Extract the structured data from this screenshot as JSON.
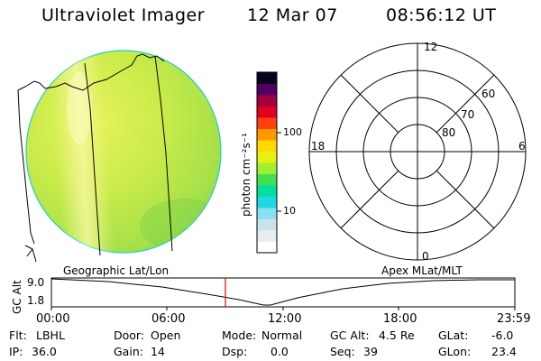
{
  "header": {
    "instrument": "Ultraviolet Imager",
    "date": "12 Mar 07",
    "time": "08:56:12 UT"
  },
  "colorbar": {
    "unit_label": "photon cm⁻²s⁻¹",
    "ticks": [
      "100",
      "10"
    ],
    "colors": [
      "#ffffff",
      "#e6eef0",
      "#c8e4ea",
      "#88e0f0",
      "#22d8e0",
      "#00e0a0",
      "#40e050",
      "#a0f030",
      "#e8f010",
      "#ffd800",
      "#ff9800",
      "#ff4010",
      "#e00020",
      "#a00040",
      "#500060",
      "#0a0020"
    ]
  },
  "polar": {
    "labels": {
      "top": "12",
      "left": "18",
      "right": "6",
      "bottom": "0",
      "lat60": "60",
      "lat70": "70",
      "lat80": "80"
    }
  },
  "timeline": {
    "left_label": "Geographic Lat/Lon",
    "right_label": "Apex MLat/MLT",
    "axis_title": "GC Alt",
    "y_ticks": [
      "9.0",
      "1.8"
    ],
    "x_ticks": [
      "00:00",
      "06:00",
      "12:00",
      "18:00",
      "23:59"
    ],
    "marker_color": "#e00000"
  },
  "status": {
    "flt_label": "Flt:",
    "flt_value": "LBHL",
    "ip_label": "IP:",
    "ip_value": "36.0",
    "door_label": "Door:",
    "door_value": "Open",
    "gain_label": "Gain:",
    "gain_value": "14",
    "mode_label": "Mode:",
    "mode_value": "Normal",
    "dsp_label": "Dsp:",
    "dsp_value": "0.0",
    "gcalt_label": "GC Alt:",
    "gcalt_value": "4.5 Re",
    "seq_label": "Seq:",
    "seq_value": "39",
    "glat_label": "GLat:",
    "glat_value": "-6.0",
    "glon_label": "GLon:",
    "glon_value": "23.4"
  }
}
